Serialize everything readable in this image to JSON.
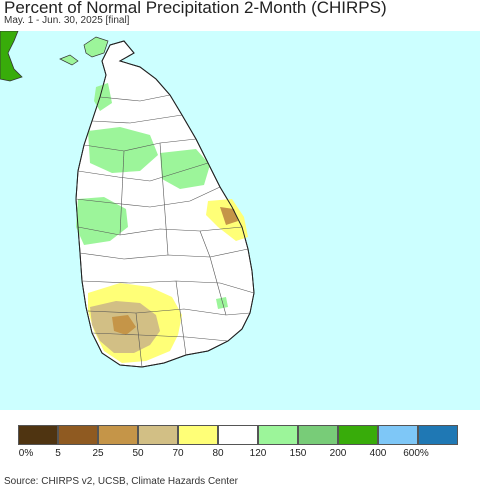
{
  "header": {
    "title": "Percent of Normal Precipitation 2-Month (CHIRPS)",
    "subtitle": "May. 1 - Jun. 30, 2025 [final]"
  },
  "legend": {
    "colors": [
      "#4f3411",
      "#8f5a21",
      "#c59548",
      "#d2bf85",
      "#ffff77",
      "#ffffff",
      "#9cf59a",
      "#78cc78",
      "#38ac0a",
      "#7ec7f7",
      "#1f78b4"
    ],
    "labels": [
      "0%",
      "5",
      "25",
      "50",
      "70",
      "80",
      "120",
      "150",
      "200",
      "400",
      "600%"
    ]
  },
  "footer": {
    "source": "Source: CHIRPS v2, UCSB, Climate Hazards Center"
  },
  "map_colors": {
    "ocean": "#ccffff",
    "land": "#ffffff",
    "india": "#38ac0a",
    "border": "#333333"
  }
}
